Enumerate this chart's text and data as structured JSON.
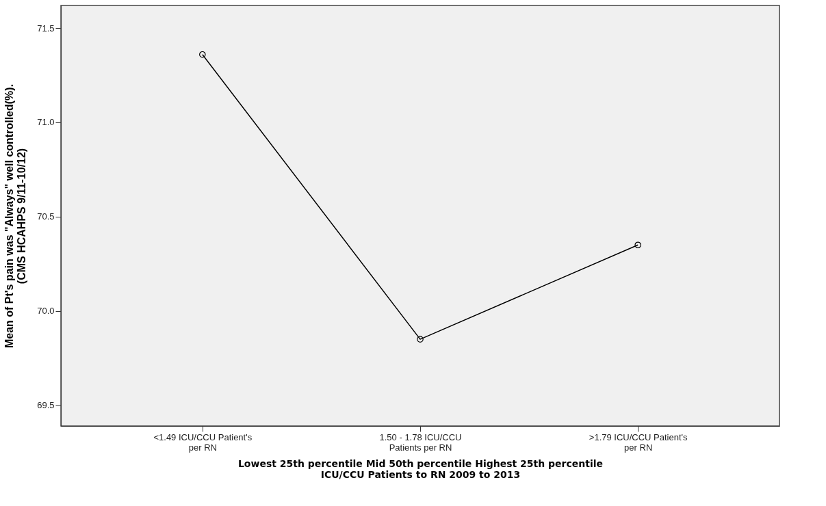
{
  "chart_data": {
    "type": "line",
    "xlabel": "Lowest 25th percentile  Mid 50th percentile   Highest 25th percentile\nICU/CCU Patients to RN 2009 to 2013",
    "ylabel": "Mean of Pt's pain was \"Always\" well controlled(%).\n(CMS HCAHPS 9/11-10/12)",
    "categories": [
      "<1.49 ICU/CCU Patient's\nper RN",
      "1.50 - 1.78 ICU/CCU\nPatients per RN",
      ">1.79 ICU/CCU Patient's\nper RN"
    ],
    "values": [
      71.36,
      69.85,
      70.35
    ],
    "color": "#000000",
    "ylim": [
      69.39,
      71.62
    ],
    "yticks": [
      69.5,
      {
        "value": 70,
        "label": "70.0"
      },
      70.5,
      {
        "value": 71,
        "label": "71.0"
      },
      71.5
    ],
    "marker": "circle",
    "line_style": "solid",
    "grid": false
  }
}
